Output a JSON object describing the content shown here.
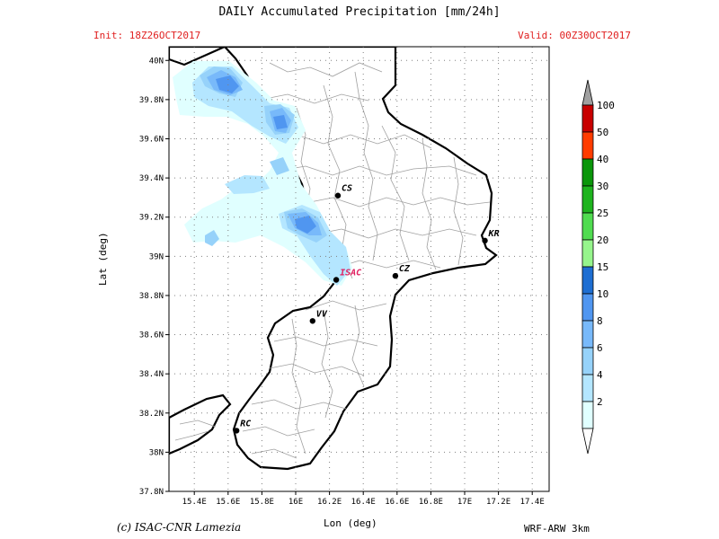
{
  "header": {
    "title": "DAILY Accumulated Precipitation [mm/24h]",
    "init": "Init: 18Z26OCT2017",
    "valid": "Valid: 00Z30OCT2017"
  },
  "axes": {
    "xlabel": "Lon (deg)",
    "ylabel": "Lat (deg)",
    "lon_range": [
      15.25,
      17.5
    ],
    "lat_range": [
      37.8,
      40.07
    ],
    "lon_ticks": [
      "15.4E",
      "15.6E",
      "15.8E",
      "16E",
      "16.2E",
      "16.4E",
      "16.6E",
      "16.8E",
      "17E",
      "17.2E",
      "17.4E"
    ],
    "lon_values": [
      15.4,
      15.6,
      15.8,
      16.0,
      16.2,
      16.4,
      16.6,
      16.8,
      17.0,
      17.2,
      17.4
    ],
    "lat_ticks": [
      "37.8N",
      "38N",
      "38.2N",
      "38.4N",
      "38.6N",
      "38.8N",
      "39N",
      "39.2N",
      "39.4N",
      "39.6N",
      "39.8N",
      "40N"
    ],
    "lat_values": [
      37.8,
      38.0,
      38.2,
      38.4,
      38.6,
      38.8,
      39.0,
      39.2,
      39.4,
      39.6,
      39.8,
      40.0
    ]
  },
  "colorbar": {
    "levels": [
      "2",
      "4",
      "6",
      "8",
      "10",
      "15",
      "20",
      "25",
      "30",
      "40",
      "50",
      "100"
    ],
    "colors": [
      "#e0ffff",
      "#b4e6ff",
      "#96d2fa",
      "#78b9fa",
      "#5096f0",
      "#1e6ed2",
      "#96f58c",
      "#50dc50",
      "#1eb41e",
      "#0a960a",
      "#ff3c00",
      "#c80000"
    ],
    "under_color": "#ffffff",
    "over_color": "#a0a0a0"
  },
  "cities": [
    {
      "label": "CS",
      "lon": 16.25,
      "lat": 39.31,
      "color": "#000000"
    },
    {
      "label": "KR",
      "lon": 17.12,
      "lat": 39.08,
      "color": "#000000"
    },
    {
      "label": "ISAC",
      "lon": 16.24,
      "lat": 38.88,
      "color": "#e02060"
    },
    {
      "label": "CZ",
      "lon": 16.59,
      "lat": 38.9,
      "color": "#000000"
    },
    {
      "label": "VV",
      "lon": 16.1,
      "lat": 38.67,
      "color": "#000000"
    },
    {
      "label": "RC",
      "lon": 15.65,
      "lat": 38.11,
      "color": "#000000"
    }
  ],
  "footer": {
    "copyright": "(c) ISAC-CNR Lamezia",
    "model": "WRF-ARW 3km"
  }
}
